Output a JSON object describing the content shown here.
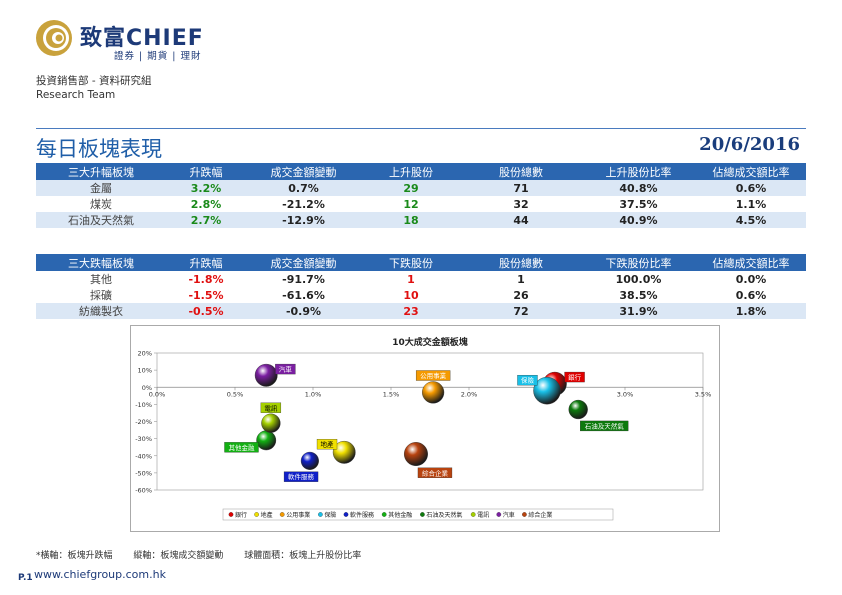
{
  "header": {
    "logo_text": "致富CHIEF",
    "logo_sub": "證券 | 期貨 | 理財",
    "dept_cn": "投資銷售部 - 資料研究組",
    "dept_en": "Research Team"
  },
  "page": {
    "title": "每日板塊表現",
    "date": "20/6/2016"
  },
  "gainers": {
    "headers": [
      "三大升幅板塊",
      "升跌幅",
      "成交金額變動",
      "上升股份",
      "股份總數",
      "上升股份比率",
      "佔總成交額比率"
    ],
    "rows": [
      [
        "金屬",
        "3.2%",
        "0.7%",
        "29",
        "71",
        "40.8%",
        "0.6%"
      ],
      [
        "煤炭",
        "2.8%",
        "-21.2%",
        "12",
        "32",
        "37.5%",
        "1.1%"
      ],
      [
        "石油及天然氣",
        "2.7%",
        "-12.9%",
        "18",
        "44",
        "40.9%",
        "4.5%"
      ]
    ]
  },
  "losers": {
    "headers": [
      "三大跌幅板塊",
      "升跌幅",
      "成交金額變動",
      "下跌股份",
      "股份總數",
      "下跌股份比率",
      "佔總成交額比率"
    ],
    "rows": [
      [
        "其他",
        "-1.8%",
        "-91.7%",
        "1",
        "1",
        "100.0%",
        "0.0%"
      ],
      [
        "採礦",
        "-1.5%",
        "-61.6%",
        "10",
        "26",
        "38.5%",
        "0.6%"
      ],
      [
        "紡織製衣",
        "-0.5%",
        "-0.9%",
        "23",
        "72",
        "31.9%",
        "1.8%"
      ]
    ]
  },
  "chart_data": {
    "type": "scatter",
    "title": "10大成交金額板塊",
    "xlim": [
      0,
      3.5
    ],
    "ylim": [
      -60,
      20
    ],
    "x_ticks": [
      "0.0%",
      "0.5%",
      "1.0%",
      "1.5%",
      "2.0%",
      "2.5%",
      "3.0%",
      "3.5%"
    ],
    "y_ticks": [
      "20%",
      "10%",
      "0%",
      "-10%",
      "-20%",
      "-30%",
      "-40%",
      "-50%",
      "-60%"
    ],
    "points": [
      {
        "name": "銀行",
        "x": 2.55,
        "y": 2,
        "size": 40,
        "color": "#e00000",
        "label_color": "#e00000",
        "label_side": "right"
      },
      {
        "name": "地產",
        "x": 1.2,
        "y": -38,
        "size": 38,
        "color": "#f0e000",
        "label_color": "#f0e000",
        "label_side": "topleft"
      },
      {
        "name": "公用事業",
        "x": 1.77,
        "y": -3,
        "size": 37,
        "color": "#f59a00",
        "label_color": "#f59a00",
        "label_side": "top"
      },
      {
        "name": "保險",
        "x": 2.5,
        "y": -2,
        "size": 46,
        "color": "#19c0e8",
        "label_color": "#19c0e8",
        "label_side": "topleft"
      },
      {
        "name": "軟件服務",
        "x": 0.98,
        "y": -43,
        "size": 30,
        "color": "#1020c8",
        "label_color": "#1020c8",
        "label_side": "bottomleft"
      },
      {
        "name": "其他金融",
        "x": 0.7,
        "y": -31,
        "size": 33,
        "color": "#13b013",
        "label_color": "#13b013",
        "label_side": "left"
      },
      {
        "name": "石油及天然氣",
        "x": 2.7,
        "y": -13,
        "size": 32,
        "color": "#0d7a0d",
        "label_color": "#0d7a0d",
        "label_side": "bottomright"
      },
      {
        "name": "電訊",
        "x": 0.73,
        "y": -21,
        "size": 32,
        "color": "#a5d000",
        "label_color": "#a5d000",
        "label_side": "top"
      },
      {
        "name": "汽車",
        "x": 0.7,
        "y": 7,
        "size": 38,
        "color": "#7b1fa2",
        "label_color": "#7b1fa2",
        "label_side": "right"
      },
      {
        "name": "綜合企業",
        "x": 1.66,
        "y": -39,
        "size": 40,
        "color": "#b8430f",
        "label_color": "#b8430f",
        "label_side": "bottomright"
      }
    ],
    "xlabel": "",
    "ylabel": ""
  },
  "footnote": {
    "x_axis": "*橫軸：板塊升跌幅",
    "y_axis": "縱軸：板塊成交額變動",
    "bubble": "球體面積：板塊上升股份比率"
  },
  "footer": {
    "page_no": "P.1",
    "website": "www.chiefgroup.com.hk"
  }
}
